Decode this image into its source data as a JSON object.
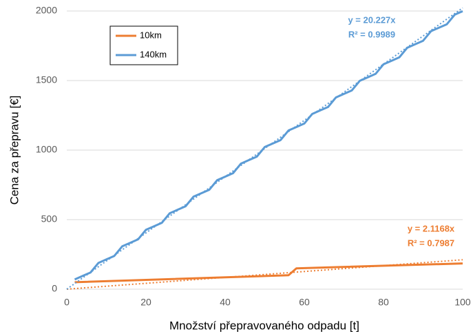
{
  "chart_data": {
    "type": "line",
    "xlabel": "Množství přepravovaného odpadu [t]",
    "ylabel": "Cena za přepravu [€]",
    "xlim": [
      0,
      100
    ],
    "xticks": [
      0,
      20,
      40,
      60,
      80,
      100
    ],
    "ylim": [
      0,
      2000
    ],
    "yticks": [
      0,
      500,
      1000,
      1500,
      2000
    ],
    "grid": true,
    "legend": "upper left",
    "series": [
      {
        "name": "10km",
        "color": "#ed7d31",
        "x": [
          2,
          56,
          58,
          100
        ],
        "values": [
          50,
          100,
          150,
          185
        ],
        "trendline": {
          "slope": 2.1168,
          "equation": "y = 2.1168x",
          "r2": "R² = 0.7987"
        }
      },
      {
        "name": "140km",
        "color": "#5b9bd5",
        "x": [
          2,
          4,
          6,
          8,
          10,
          12,
          14,
          16,
          18,
          20,
          22,
          24,
          26,
          28,
          30,
          32,
          34,
          36,
          38,
          40,
          42,
          44,
          46,
          48,
          50,
          52,
          54,
          56,
          58,
          60,
          62,
          64,
          66,
          68,
          70,
          72,
          74,
          76,
          78,
          80,
          82,
          84,
          86,
          88,
          90,
          92,
          94,
          96,
          98,
          100
        ],
        "values": [
          70,
          95,
          120,
          189,
          214,
          239,
          308,
          333,
          358,
          427,
          452,
          477,
          546,
          571,
          596,
          665,
          690,
          715,
          784,
          809,
          834,
          903,
          928,
          953,
          1022,
          1047,
          1072,
          1141,
          1166,
          1191,
          1260,
          1285,
          1310,
          1379,
          1404,
          1429,
          1498,
          1523,
          1548,
          1617,
          1642,
          1667,
          1736,
          1761,
          1786,
          1855,
          1880,
          1905,
          1974,
          1999
        ],
        "trendline": {
          "slope": 20.227,
          "equation": "y = 20.227x",
          "r2": "R² = 0.9989"
        }
      }
    ]
  }
}
